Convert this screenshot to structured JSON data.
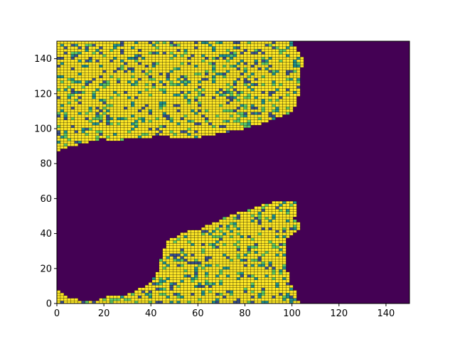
{
  "chart_data": {
    "type": "heatmap",
    "title": "",
    "xlabel": "",
    "ylabel": "",
    "xlim": [
      0,
      150
    ],
    "ylim": [
      0,
      150
    ],
    "grid": false,
    "cell_size": 1.5,
    "colormap": "viridis",
    "colors": {
      "background": "#440154",
      "cell_edge": "#000000",
      "high": "#fde725",
      "mid": "#21918c",
      "mid_light": "#5ec962",
      "mid_dark": "#3b528b",
      "axis": "#000000"
    },
    "x_ticks": [
      {
        "value": 0,
        "label": "0"
      },
      {
        "value": 20,
        "label": "20"
      },
      {
        "value": 40,
        "label": "40"
      },
      {
        "value": 60,
        "label": "60"
      },
      {
        "value": 80,
        "label": "80"
      },
      {
        "value": 100,
        "label": "100"
      },
      {
        "value": 120,
        "label": "120"
      },
      {
        "value": 140,
        "label": "140"
      }
    ],
    "y_ticks": [
      {
        "value": 0,
        "label": "0"
      },
      {
        "value": 20,
        "label": "20"
      },
      {
        "value": 40,
        "label": "40"
      },
      {
        "value": 60,
        "label": "60"
      },
      {
        "value": 80,
        "label": "80"
      },
      {
        "value": 100,
        "label": "100"
      },
      {
        "value": 120,
        "label": "120"
      },
      {
        "value": 140,
        "label": "140"
      }
    ],
    "regions": [
      {
        "name": "upper-landmass",
        "outline": [
          [
            0,
            150
          ],
          [
            100,
            150
          ],
          [
            101,
            147
          ],
          [
            104,
            143
          ],
          [
            105,
            137
          ],
          [
            103,
            130
          ],
          [
            103,
            120
          ],
          [
            101,
            111
          ],
          [
            98,
            108
          ],
          [
            90,
            104
          ],
          [
            80,
            100
          ],
          [
            72,
            98
          ],
          [
            65,
            96
          ],
          [
            60,
            95
          ],
          [
            55,
            94
          ],
          [
            45,
            96
          ],
          [
            40,
            95
          ],
          [
            35,
            94
          ],
          [
            30,
            94
          ],
          [
            25,
            93
          ],
          [
            20,
            94
          ],
          [
            15,
            93
          ],
          [
            10,
            91
          ],
          [
            5,
            90
          ],
          [
            2,
            88
          ],
          [
            0,
            86
          ]
        ]
      },
      {
        "name": "lower-landmass",
        "outline": [
          [
            0,
            0
          ],
          [
            0,
            8
          ],
          [
            2,
            6
          ],
          [
            4,
            4
          ],
          [
            7,
            3
          ],
          [
            10,
            2
          ],
          [
            15,
            1
          ],
          [
            18,
            2
          ],
          [
            21,
            4
          ],
          [
            28,
            4
          ],
          [
            33,
            7
          ],
          [
            38,
            10
          ],
          [
            41,
            14
          ],
          [
            43,
            18
          ],
          [
            44,
            24
          ],
          [
            45,
            30
          ],
          [
            47,
            35
          ],
          [
            50,
            38
          ],
          [
            55,
            41
          ],
          [
            60,
            42
          ],
          [
            65,
            45
          ],
          [
            70,
            48
          ],
          [
            75,
            51
          ],
          [
            80,
            53
          ],
          [
            86,
            56
          ],
          [
            92,
            58
          ],
          [
            97,
            59
          ],
          [
            101,
            59
          ],
          [
            102,
            55
          ],
          [
            101,
            48
          ],
          [
            104,
            45
          ],
          [
            102,
            41
          ],
          [
            98,
            37
          ],
          [
            97,
            30
          ],
          [
            97,
            22
          ],
          [
            99,
            15
          ],
          [
            100,
            10
          ],
          [
            102,
            6
          ],
          [
            103,
            0
          ]
        ]
      }
    ],
    "mixing": {
      "high_fraction": 0.78,
      "mid_light_fraction": 0.08,
      "mid_fraction": 0.07,
      "mid_dark_fraction": 0.07
    }
  }
}
